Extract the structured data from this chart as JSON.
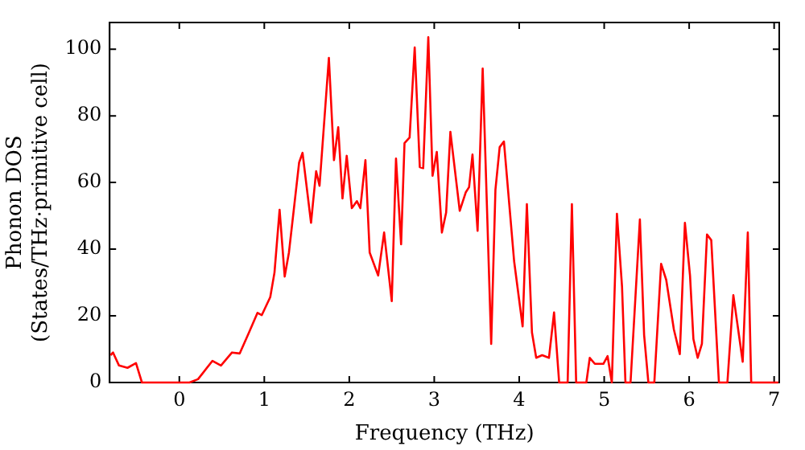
{
  "chart_data": {
    "type": "line",
    "xlabel": "Frequency (THz)",
    "ylabel": "Phonon DOS\n(States/THz·primitive cell)",
    "xlim": [
      -0.82,
      7.06
    ],
    "xticks": [
      0,
      1,
      2,
      3,
      4,
      5,
      6,
      7
    ],
    "ylim": [
      0,
      108
    ],
    "yticks": [
      0,
      20,
      40,
      60,
      80,
      100
    ],
    "grid": false,
    "legend": false,
    "marker": "none",
    "line_style": "solid",
    "series": [
      {
        "color": "#ff0000",
        "x": [
          -0.81,
          -0.78,
          -0.71,
          -0.61,
          -0.51,
          -0.44,
          0.12,
          0.22,
          0.39,
          0.49,
          0.62,
          0.71,
          0.82,
          0.92,
          0.97,
          1.07,
          1.12,
          1.18,
          1.24,
          1.29,
          1.41,
          1.45,
          1.55,
          1.61,
          1.65,
          1.76,
          1.82,
          1.87,
          1.92,
          1.97,
          2.03,
          2.09,
          2.13,
          2.19,
          2.24,
          2.34,
          2.41,
          2.5,
          2.55,
          2.61,
          2.65,
          2.71,
          2.77,
          2.83,
          2.87,
          2.93,
          2.98,
          3.03,
          3.09,
          3.14,
          3.19,
          3.3,
          3.37,
          3.41,
          3.45,
          3.51,
          3.57,
          3.67,
          3.72,
          3.77,
          3.82,
          3.94,
          4.04,
          4.09,
          4.15,
          4.2,
          4.27,
          4.35,
          4.41,
          4.47,
          4.57,
          4.62,
          4.67,
          4.79,
          4.83,
          4.89,
          4.99,
          5.04,
          5.09,
          5.15,
          5.21,
          5.25,
          5.31,
          5.42,
          5.47,
          5.52,
          5.59,
          5.67,
          5.73,
          5.82,
          5.89,
          5.95,
          6.01,
          6.05,
          6.1,
          6.15,
          6.21,
          6.26,
          6.35,
          6.45,
          6.52,
          6.63,
          6.69,
          6.73,
          7.05
        ],
        "values": [
          8.2,
          9,
          5.1,
          4.4,
          5.8,
          0,
          0,
          1,
          6.5,
          5.1,
          9,
          8.7,
          15,
          20.9,
          20.2,
          25.6,
          33,
          51.8,
          31.8,
          39,
          66,
          68.9,
          47.9,
          63.4,
          59,
          97.4,
          66.7,
          76.6,
          55.2,
          68,
          52.3,
          54.4,
          52.3,
          66.7,
          39,
          32.1,
          45,
          24.4,
          67.2,
          41.5,
          71.8,
          73.5,
          100.5,
          64.6,
          64.3,
          103.6,
          62,
          69.2,
          45,
          51,
          75.2,
          51.5,
          57,
          58.6,
          68.4,
          45.5,
          94.2,
          11.6,
          57.8,
          70.6,
          72.3,
          36.4,
          16.8,
          53.5,
          15,
          7.4,
          8.2,
          7.4,
          21,
          0,
          0,
          53.5,
          0,
          0,
          7.4,
          5.6,
          5.6,
          7.9,
          0,
          50.6,
          28.7,
          0,
          0,
          48.9,
          14.2,
          0,
          0,
          35.6,
          30.8,
          15.9,
          8.5,
          47.9,
          32.1,
          13,
          7.4,
          11.6,
          44.4,
          42.7,
          0,
          0,
          26.2,
          6.2,
          45,
          0,
          0
        ]
      }
    ]
  }
}
